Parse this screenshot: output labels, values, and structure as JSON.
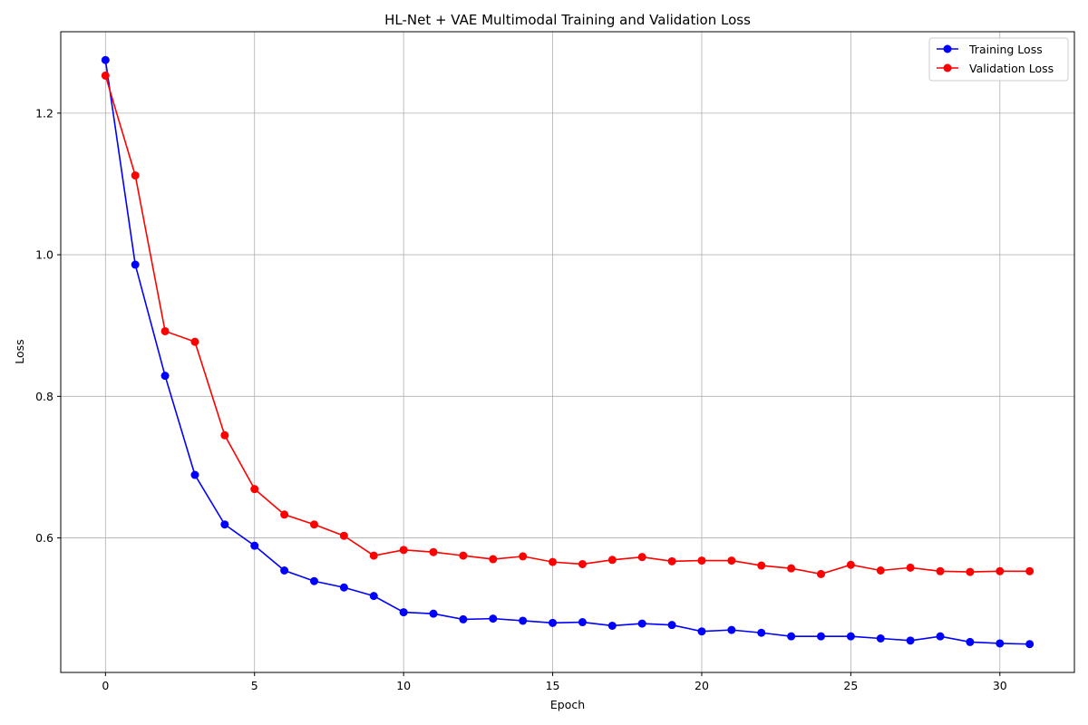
{
  "chart_data": {
    "type": "line",
    "title": "HL-Net + VAE Multimodal Training and Validation Loss",
    "xlabel": "Epoch",
    "ylabel": "Loss",
    "xlim": [
      -1.5,
      32.5
    ],
    "ylim": [
      0.41,
      1.315
    ],
    "xticks": [
      0,
      5,
      10,
      15,
      20,
      25,
      30
    ],
    "yticks": [
      0.6,
      0.8,
      1.0,
      1.2
    ],
    "grid": true,
    "legend_position": "top-right",
    "x": [
      0,
      1,
      2,
      3,
      4,
      5,
      6,
      7,
      8,
      9,
      10,
      11,
      12,
      13,
      14,
      15,
      16,
      17,
      18,
      19,
      20,
      21,
      22,
      23,
      24,
      25,
      26,
      27,
      28,
      29,
      30,
      31
    ],
    "series": [
      {
        "name": "Training Loss",
        "color": "#0000ff",
        "values": [
          1.275,
          0.986,
          0.829,
          0.689,
          0.619,
          0.589,
          0.554,
          0.539,
          0.53,
          0.518,
          0.495,
          0.493,
          0.485,
          0.486,
          0.483,
          0.48,
          0.481,
          0.476,
          0.479,
          0.477,
          0.468,
          0.47,
          0.466,
          0.461,
          0.461,
          0.461,
          0.458,
          0.455,
          0.461,
          0.453,
          0.451,
          0.45
        ]
      },
      {
        "name": "Validation Loss",
        "color": "#ff0000",
        "values": [
          1.253,
          1.112,
          0.892,
          0.877,
          0.745,
          0.669,
          0.633,
          0.619,
          0.603,
          0.575,
          0.583,
          0.58,
          0.575,
          0.57,
          0.574,
          0.566,
          0.563,
          0.569,
          0.573,
          0.567,
          0.568,
          0.568,
          0.561,
          0.557,
          0.549,
          0.562,
          0.554,
          0.558,
          0.553,
          0.552,
          0.553,
          0.553
        ]
      }
    ]
  }
}
